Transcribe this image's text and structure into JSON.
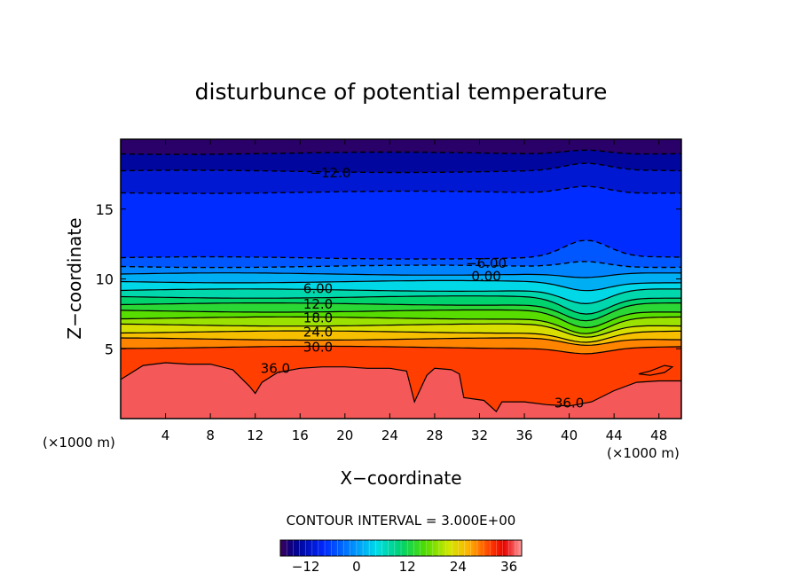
{
  "chart_data": {
    "type": "contour",
    "title": "disturbunce of potential temperature",
    "xlabel": "X−coordinate",
    "ylabel": "Z−coordinate",
    "x_unit_left": "(×1000 m)",
    "x_unit_right": "(×1000 m)",
    "xlim": [
      0,
      50
    ],
    "ylim": [
      0,
      20
    ],
    "x_ticks": [
      4,
      8,
      12,
      16,
      20,
      24,
      28,
      32,
      36,
      40,
      44,
      48
    ],
    "y_ticks": [
      5,
      10,
      15
    ],
    "contour_interval_text": "CONTOUR INTERVAL = 3.000E+00",
    "contour_interval": 3.0,
    "colorbar": {
      "min": -18,
      "max": 39,
      "tick_values": [
        -12,
        0,
        12,
        24,
        36
      ],
      "tick_labels": [
        "−12",
        "0",
        "12",
        "24",
        "36"
      ]
    },
    "contour_labels": [
      {
        "text": "−12.0",
        "x": 18.7,
        "z": 17.6
      },
      {
        "text": "−6.00",
        "x": 32.6,
        "z": 11.1
      },
      {
        "text": "0.00",
        "x": 32.6,
        "z": 10.2
      },
      {
        "text": "6.00",
        "x": 17.6,
        "z": 9.3
      },
      {
        "text": "12.0",
        "x": 17.6,
        "z": 8.2
      },
      {
        "text": "18.0",
        "x": 17.6,
        "z": 7.2
      },
      {
        "text": "24.0",
        "x": 17.6,
        "z": 6.2
      },
      {
        "text": "30.0",
        "x": 17.6,
        "z": 5.1
      },
      {
        "text": "36.0",
        "x": 13.8,
        "z": 3.6
      },
      {
        "text": "36.0",
        "x": 40.0,
        "z": 1.1
      }
    ],
    "contour_levels": [
      {
        "value": -15,
        "z": 19.0,
        "bump": 0.3,
        "style": "dashed"
      },
      {
        "value": -12,
        "z": 17.7,
        "bump": 0.5,
        "style": "dashed"
      },
      {
        "value": -9,
        "z": 16.2,
        "bump": 0.5,
        "style": "dashed"
      },
      {
        "value": -6,
        "z": 11.5,
        "bump": 1.2,
        "style": "dashed"
      },
      {
        "value": -3,
        "z": 10.9,
        "bump": 0.4,
        "style": "dashed"
      },
      {
        "value": 0,
        "z": 10.35,
        "bump": -0.3,
        "style": "solid"
      },
      {
        "value": 3,
        "z": 9.8,
        "bump": -0.6,
        "style": "solid"
      },
      {
        "value": 6,
        "z": 9.2,
        "bump": -1.0,
        "style": "solid"
      },
      {
        "value": 9,
        "z": 8.7,
        "bump": -1.2,
        "style": "solid"
      },
      {
        "value": 12,
        "z": 8.2,
        "bump": -1.2,
        "style": "solid"
      },
      {
        "value": 15,
        "z": 7.7,
        "bump": -1.2,
        "style": "solid"
      },
      {
        "value": 18,
        "z": 7.2,
        "bump": -1.1,
        "style": "solid"
      },
      {
        "value": 21,
        "z": 6.7,
        "bump": -0.9,
        "style": "solid"
      },
      {
        "value": 24,
        "z": 6.2,
        "bump": -0.7,
        "style": "solid"
      },
      {
        "value": 27,
        "z": 5.7,
        "bump": -0.5,
        "style": "solid"
      },
      {
        "value": 30,
        "z": 5.1,
        "bump": -0.4,
        "style": "solid"
      }
    ],
    "contour_36_boundary": [
      [
        0,
        2.8
      ],
      [
        0.8,
        3.2
      ],
      [
        2,
        3.8
      ],
      [
        4,
        4.0
      ],
      [
        6,
        3.9
      ],
      [
        8,
        3.9
      ],
      [
        10,
        3.5
      ],
      [
        11.5,
        2.3
      ],
      [
        12,
        1.8
      ],
      [
        12.6,
        2.6
      ],
      [
        14,
        3.3
      ],
      [
        16,
        3.6
      ],
      [
        18,
        3.7
      ],
      [
        20,
        3.7
      ],
      [
        22,
        3.6
      ],
      [
        24,
        3.6
      ],
      [
        25.5,
        3.4
      ],
      [
        26.2,
        1.2
      ],
      [
        27.3,
        3.1
      ],
      [
        28,
        3.6
      ],
      [
        29.5,
        3.5
      ],
      [
        30.2,
        3.2
      ],
      [
        30.6,
        1.5
      ],
      [
        32.4,
        1.3
      ],
      [
        33.5,
        0.5
      ],
      [
        34,
        1.2
      ],
      [
        36,
        1.2
      ],
      [
        38,
        1.0
      ],
      [
        40,
        0.9
      ],
      [
        42,
        1.2
      ],
      [
        44,
        2.0
      ],
      [
        46,
        2.6
      ],
      [
        48,
        2.7
      ],
      [
        50,
        2.7
      ]
    ],
    "contour_36_island": [
      [
        46.2,
        3.2
      ],
      [
        47.2,
        3.4
      ],
      [
        48.5,
        3.8
      ],
      [
        49.2,
        3.7
      ],
      [
        48.5,
        3.3
      ],
      [
        47.2,
        3.1
      ],
      [
        46.2,
        3.2
      ]
    ]
  }
}
